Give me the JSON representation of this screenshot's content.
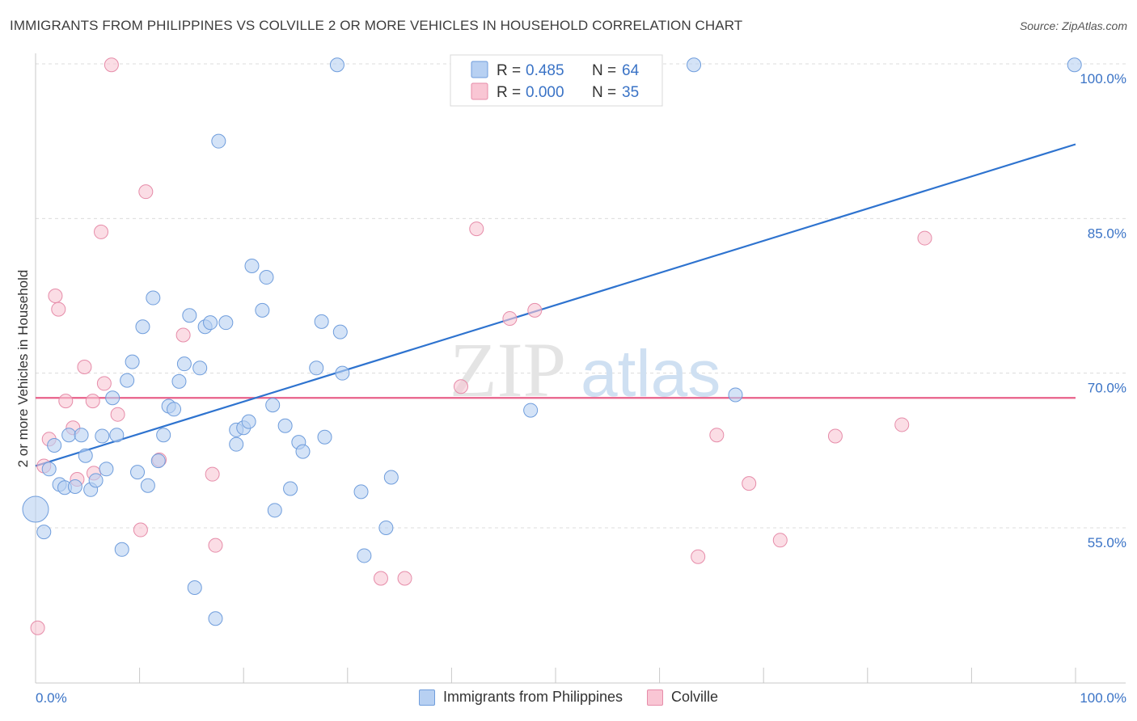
{
  "header": {
    "title": "IMMIGRANTS FROM PHILIPPINES VS COLVILLE 2 OR MORE VEHICLES IN HOUSEHOLD CORRELATION CHART",
    "source": "Source: ZipAtlas.com"
  },
  "watermark": {
    "part1": "ZIP",
    "part2": "atlas"
  },
  "colors": {
    "blue_fill": "#b7d0f2",
    "blue_stroke": "#6f9ddc",
    "blue_line": "#2e73cf",
    "pink_fill": "#f9c6d4",
    "pink_stroke": "#e68ca9",
    "pink_line": "#e8608a",
    "tick_text": "#3a73c6",
    "grid": "#dcdcdc"
  },
  "legend": {
    "rows": [
      {
        "r_label": "R = ",
        "r_value": "0.485",
        "n_label": "N = ",
        "n_value": "64"
      },
      {
        "r_label": "R = ",
        "r_value": "0.000",
        "n_label": "N = ",
        "n_value": "35"
      }
    ]
  },
  "chart_data": {
    "type": "scatter",
    "title": "IMMIGRANTS FROM PHILIPPINES VS COLVILLE 2 OR MORE VEHICLES IN HOUSEHOLD CORRELATION CHART",
    "xlabel": "",
    "ylabel": "2 or more Vehicles in Household",
    "xlim": [
      0,
      100
    ],
    "ylim": [
      40,
      101.5
    ],
    "x_tick_labels": [
      "0.0%",
      "100.0%"
    ],
    "y_ticks": [
      55,
      70,
      85,
      100
    ],
    "y_tick_labels": [
      "55.0%",
      "70.0%",
      "85.0%",
      "100.0%"
    ],
    "grid": true,
    "legend_position": "top-center",
    "series": [
      {
        "name": "Immigrants from Philippines",
        "color": "#b7d0f2",
        "trend": {
          "x": [
            0,
            100
          ],
          "y": [
            61.0,
            92.2
          ]
        },
        "points": [
          {
            "x": 0.0,
            "y": 56.8,
            "big": true
          },
          {
            "x": 0.8,
            "y": 54.6
          },
          {
            "x": 1.3,
            "y": 60.7
          },
          {
            "x": 1.8,
            "y": 63.0
          },
          {
            "x": 2.3,
            "y": 59.2
          },
          {
            "x": 2.8,
            "y": 58.9
          },
          {
            "x": 3.2,
            "y": 64.0
          },
          {
            "x": 3.8,
            "y": 59.0
          },
          {
            "x": 4.4,
            "y": 64.0
          },
          {
            "x": 4.8,
            "y": 62.0
          },
          {
            "x": 5.3,
            "y": 58.7
          },
          {
            "x": 5.8,
            "y": 59.6
          },
          {
            "x": 6.4,
            "y": 63.9
          },
          {
            "x": 6.8,
            "y": 60.7
          },
          {
            "x": 7.4,
            "y": 67.6
          },
          {
            "x": 7.8,
            "y": 64.0
          },
          {
            "x": 8.3,
            "y": 52.9
          },
          {
            "x": 8.8,
            "y": 69.3
          },
          {
            "x": 9.3,
            "y": 71.1
          },
          {
            "x": 9.8,
            "y": 60.4
          },
          {
            "x": 10.3,
            "y": 74.5
          },
          {
            "x": 10.8,
            "y": 59.1
          },
          {
            "x": 11.3,
            "y": 77.3
          },
          {
            "x": 11.8,
            "y": 61.5
          },
          {
            "x": 12.3,
            "y": 64.0
          },
          {
            "x": 12.8,
            "y": 66.8
          },
          {
            "x": 13.3,
            "y": 66.5
          },
          {
            "x": 13.8,
            "y": 69.2
          },
          {
            "x": 14.3,
            "y": 70.9
          },
          {
            "x": 14.8,
            "y": 75.6
          },
          {
            "x": 15.3,
            "y": 49.2
          },
          {
            "x": 15.8,
            "y": 70.5
          },
          {
            "x": 16.3,
            "y": 74.5
          },
          {
            "x": 16.8,
            "y": 74.9
          },
          {
            "x": 17.3,
            "y": 46.2
          },
          {
            "x": 17.6,
            "y": 92.5
          },
          {
            "x": 18.3,
            "y": 74.9
          },
          {
            "x": 19.3,
            "y": 63.1
          },
          {
            "x": 19.3,
            "y": 64.5
          },
          {
            "x": 20.0,
            "y": 64.7
          },
          {
            "x": 20.5,
            "y": 65.3
          },
          {
            "x": 20.8,
            "y": 80.4
          },
          {
            "x": 21.8,
            "y": 76.1
          },
          {
            "x": 22.2,
            "y": 79.3
          },
          {
            "x": 22.8,
            "y": 66.9
          },
          {
            "x": 23.0,
            "y": 56.7
          },
          {
            "x": 24.0,
            "y": 64.9
          },
          {
            "x": 24.5,
            "y": 58.8
          },
          {
            "x": 25.3,
            "y": 63.3
          },
          {
            "x": 25.7,
            "y": 62.4
          },
          {
            "x": 27.0,
            "y": 70.5
          },
          {
            "x": 27.5,
            "y": 75.0
          },
          {
            "x": 27.8,
            "y": 63.8
          },
          {
            "x": 29.0,
            "y": 99.9
          },
          {
            "x": 29.3,
            "y": 74.0
          },
          {
            "x": 29.5,
            "y": 70.0
          },
          {
            "x": 31.3,
            "y": 58.5
          },
          {
            "x": 31.6,
            "y": 52.3
          },
          {
            "x": 33.7,
            "y": 55.0
          },
          {
            "x": 34.2,
            "y": 59.9
          },
          {
            "x": 47.6,
            "y": 66.4
          },
          {
            "x": 63.3,
            "y": 99.9
          },
          {
            "x": 67.3,
            "y": 67.9
          },
          {
            "x": 99.9,
            "y": 99.9
          }
        ]
      },
      {
        "name": "Colville",
        "color": "#f9c6d4",
        "trend": {
          "x": [
            0,
            100
          ],
          "y": [
            67.6,
            67.6
          ]
        },
        "points": [
          {
            "x": 0.2,
            "y": 45.3
          },
          {
            "x": 0.8,
            "y": 61.0
          },
          {
            "x": 1.3,
            "y": 63.6
          },
          {
            "x": 1.9,
            "y": 77.5
          },
          {
            "x": 2.2,
            "y": 76.2
          },
          {
            "x": 2.9,
            "y": 67.3
          },
          {
            "x": 3.6,
            "y": 64.7
          },
          {
            "x": 4.0,
            "y": 59.7
          },
          {
            "x": 4.7,
            "y": 70.6
          },
          {
            "x": 5.5,
            "y": 67.3
          },
          {
            "x": 5.6,
            "y": 60.3
          },
          {
            "x": 6.3,
            "y": 83.7
          },
          {
            "x": 6.6,
            "y": 69.0
          },
          {
            "x": 7.3,
            "y": 99.9
          },
          {
            "x": 7.9,
            "y": 66.0
          },
          {
            "x": 10.1,
            "y": 54.8
          },
          {
            "x": 10.6,
            "y": 87.6
          },
          {
            "x": 11.9,
            "y": 61.6
          },
          {
            "x": 14.2,
            "y": 73.7
          },
          {
            "x": 17.0,
            "y": 60.2
          },
          {
            "x": 17.3,
            "y": 53.3
          },
          {
            "x": 33.2,
            "y": 50.1
          },
          {
            "x": 35.5,
            "y": 50.1
          },
          {
            "x": 40.9,
            "y": 68.7
          },
          {
            "x": 42.4,
            "y": 84.0
          },
          {
            "x": 45.6,
            "y": 75.3
          },
          {
            "x": 48.0,
            "y": 76.1
          },
          {
            "x": 53.5,
            "y": 99.9
          },
          {
            "x": 63.7,
            "y": 52.2
          },
          {
            "x": 65.5,
            "y": 64.0
          },
          {
            "x": 68.6,
            "y": 59.3
          },
          {
            "x": 71.6,
            "y": 53.8
          },
          {
            "x": 76.9,
            "y": 63.9
          },
          {
            "x": 83.3,
            "y": 65.0
          },
          {
            "x": 85.5,
            "y": 83.1
          }
        ]
      }
    ]
  }
}
